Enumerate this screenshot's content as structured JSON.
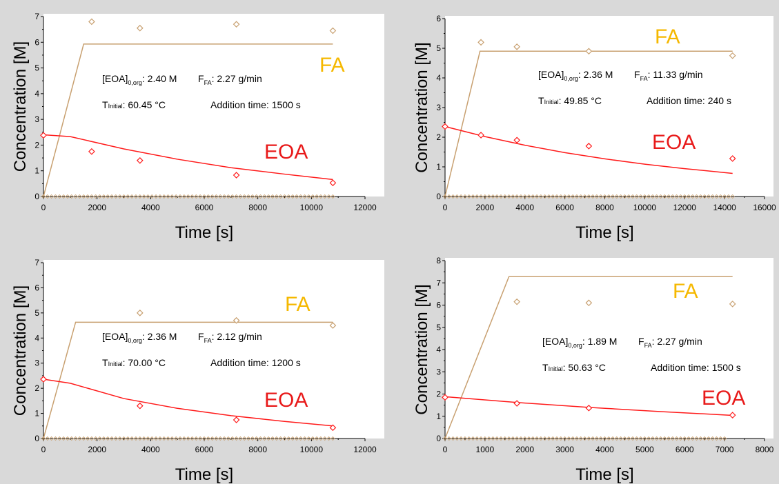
{
  "chart_data": [
    {
      "type": "line",
      "xlabel": "Time [s]",
      "ylabel": "Concentration [M]",
      "xlim": [
        0,
        12000
      ],
      "ylim": [
        0,
        7
      ],
      "xticks": [
        0,
        2000,
        4000,
        6000,
        8000,
        10000,
        12000
      ],
      "yticks": [
        0,
        1,
        2,
        3,
        4,
        5,
        6,
        7
      ],
      "params": {
        "eoa": "2.40 M",
        "ffa": "2.27 g/min",
        "tinit": "60.45 °C",
        "addition": "Addition time: 1500 s"
      },
      "series_labels": {
        "fa": "FA",
        "eoa": "EOA"
      },
      "fa_line": {
        "x": [
          0,
          1500,
          10800
        ],
        "y": [
          0,
          5.93,
          5.93
        ]
      },
      "eoa_line": {
        "x": [
          0,
          1000,
          3000,
          5000,
          7000,
          9000,
          10800
        ],
        "y": [
          2.4,
          2.33,
          1.85,
          1.45,
          1.12,
          0.87,
          0.66
        ]
      },
      "fa_points": {
        "x": [
          1800,
          3600,
          7200,
          10800
        ],
        "y": [
          6.8,
          6.55,
          6.7,
          6.45
        ]
      },
      "eoa_points": {
        "x": [
          0,
          1800,
          3600,
          7200,
          10800
        ],
        "y": [
          2.38,
          1.75,
          1.4,
          0.83,
          0.53
        ]
      },
      "baseline_end": 10800
    },
    {
      "type": "line",
      "xlabel": "Time [s]",
      "ylabel": "Concentration [M]",
      "xlim": [
        0,
        16000
      ],
      "ylim": [
        0,
        6
      ],
      "xticks": [
        0,
        2000,
        4000,
        6000,
        8000,
        10000,
        12000,
        14000,
        16000
      ],
      "yticks": [
        0,
        1,
        2,
        3,
        4,
        5,
        6
      ],
      "params": {
        "eoa": "2.36 M",
        "ffa": "11.33 g/min",
        "tinit": "49.85 °C",
        "addition": "Addition time: 240 s"
      },
      "series_labels": {
        "fa": "FA",
        "eoa": "EOA"
      },
      "fa_line": {
        "x": [
          0,
          1750,
          14400
        ],
        "y": [
          0,
          4.9,
          4.9
        ]
      },
      "eoa_line": {
        "x": [
          0,
          2000,
          4000,
          6000,
          8000,
          10000,
          12000,
          14400
        ],
        "y": [
          2.36,
          2.02,
          1.73,
          1.48,
          1.27,
          1.09,
          0.94,
          0.78
        ]
      },
      "fa_points": {
        "x": [
          1800,
          3600,
          7200,
          14400
        ],
        "y": [
          5.2,
          5.05,
          4.9,
          4.75
        ]
      },
      "eoa_points": {
        "x": [
          0,
          1800,
          3600,
          7200,
          14400
        ],
        "y": [
          2.36,
          2.07,
          1.9,
          1.7,
          1.28
        ]
      },
      "baseline_end": 14400
    },
    {
      "type": "line",
      "xlabel": "Time [s]",
      "ylabel": "Concentration [M]",
      "xlim": [
        0,
        12000
      ],
      "ylim": [
        0,
        7
      ],
      "xticks": [
        0,
        2000,
        4000,
        6000,
        8000,
        10000,
        12000
      ],
      "yticks": [
        0,
        1,
        2,
        3,
        4,
        5,
        6,
        7
      ],
      "params": {
        "eoa": "2.36 M",
        "ffa": "2.12 g/min",
        "tinit": "70.00 °C",
        "addition": "Addition time: 1200 s"
      },
      "series_labels": {
        "fa": "FA",
        "eoa": "EOA"
      },
      "fa_line": {
        "x": [
          0,
          1200,
          10800
        ],
        "y": [
          0,
          4.63,
          4.63
        ]
      },
      "eoa_line": {
        "x": [
          0,
          1000,
          3000,
          5000,
          7000,
          9000,
          10800
        ],
        "y": [
          2.36,
          2.2,
          1.59,
          1.2,
          0.91,
          0.68,
          0.5
        ]
      },
      "fa_points": {
        "x": [
          3600,
          7200,
          10800
        ],
        "y": [
          5.0,
          4.7,
          4.5
        ]
      },
      "eoa_points": {
        "x": [
          0,
          3600,
          7200,
          10800
        ],
        "y": [
          2.36,
          1.3,
          0.74,
          0.43
        ]
      },
      "baseline_end": 10800
    },
    {
      "type": "line",
      "xlabel": "Time [s]",
      "ylabel": "Concentration [M]",
      "xlim": [
        0,
        8000
      ],
      "ylim": [
        0,
        8
      ],
      "xticks": [
        0,
        1000,
        2000,
        3000,
        4000,
        5000,
        6000,
        7000,
        8000
      ],
      "yticks": [
        0,
        1,
        2,
        3,
        4,
        5,
        6,
        7,
        8
      ],
      "params": {
        "eoa": "1.89 M",
        "ffa": "2.27 g/min",
        "tinit": "50.63 °C",
        "addition": "Addition time: 1500 s"
      },
      "series_labels": {
        "fa": "FA",
        "eoa": "EOA"
      },
      "fa_line": {
        "x": [
          0,
          1600,
          7200
        ],
        "y": [
          0,
          7.28,
          7.28
        ]
      },
      "eoa_line": {
        "x": [
          0,
          1800,
          3600,
          5400,
          7200
        ],
        "y": [
          1.88,
          1.62,
          1.4,
          1.21,
          1.04
        ]
      },
      "fa_points": {
        "x": [
          1800,
          3600,
          7200
        ],
        "y": [
          6.15,
          6.1,
          6.05
        ]
      },
      "eoa_points": {
        "x": [
          0,
          1800,
          3600,
          7200
        ],
        "y": [
          1.85,
          1.58,
          1.37,
          1.05
        ]
      },
      "baseline_end": 7000
    }
  ],
  "colors": {
    "fa_line": "#c8a070",
    "fa_marker": "#c8a070",
    "eoa": "#ff1a1a",
    "fa_label": "#f5b800",
    "eoa_label": "#e81a1a",
    "axis": "#000000",
    "plot_bg": "#ffffff",
    "page_bg": "#d9d9d9"
  }
}
